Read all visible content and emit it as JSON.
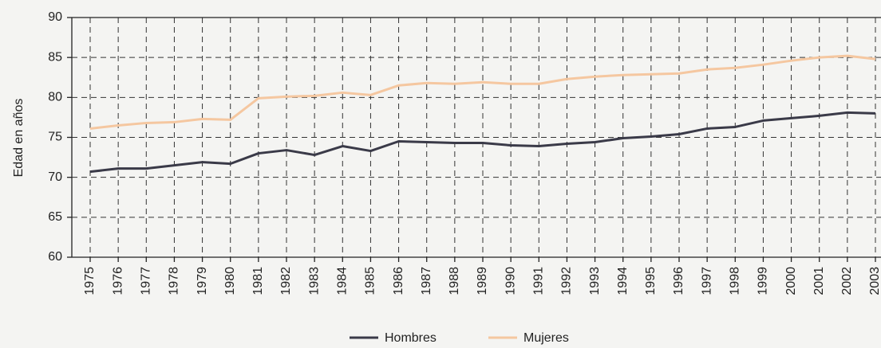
{
  "chart_data": {
    "type": "line",
    "y_label": "Edad en años",
    "categories": [
      "1975",
      "1976",
      "1977",
      "1978",
      "1979",
      "1980",
      "1981",
      "1982",
      "1983",
      "1984",
      "1985",
      "1986",
      "1987",
      "1988",
      "1989",
      "1990",
      "1991",
      "1992",
      "1993",
      "1994",
      "1995",
      "1996",
      "1997",
      "1998",
      "1999",
      "2000",
      "2001",
      "2002",
      "2003"
    ],
    "series": [
      {
        "name": "Hombres",
        "color": "#3a3a48",
        "values": [
          70.7,
          71.1,
          71.1,
          71.5,
          71.9,
          71.7,
          73.0,
          73.4,
          72.8,
          73.9,
          73.3,
          74.5,
          74.4,
          74.3,
          74.3,
          74.0,
          73.9,
          74.2,
          74.4,
          74.9,
          75.1,
          75.4,
          76.1,
          76.3,
          77.1,
          77.4,
          77.7,
          78.1,
          78.0
        ]
      },
      {
        "name": "Mujeres",
        "color": "#f5c7a0",
        "values": [
          76.1,
          76.5,
          76.8,
          76.9,
          77.3,
          77.2,
          79.9,
          80.1,
          80.2,
          80.6,
          80.3,
          81.5,
          81.8,
          81.7,
          81.9,
          81.7,
          81.7,
          82.3,
          82.6,
          82.8,
          82.9,
          83.0,
          83.5,
          83.7,
          84.1,
          84.6,
          85.0,
          85.2,
          84.8
        ]
      }
    ],
    "ylim": [
      60,
      90
    ],
    "yticks": [
      60,
      65,
      70,
      75,
      80,
      85,
      90
    ],
    "grid": true,
    "legend": "bottom"
  }
}
